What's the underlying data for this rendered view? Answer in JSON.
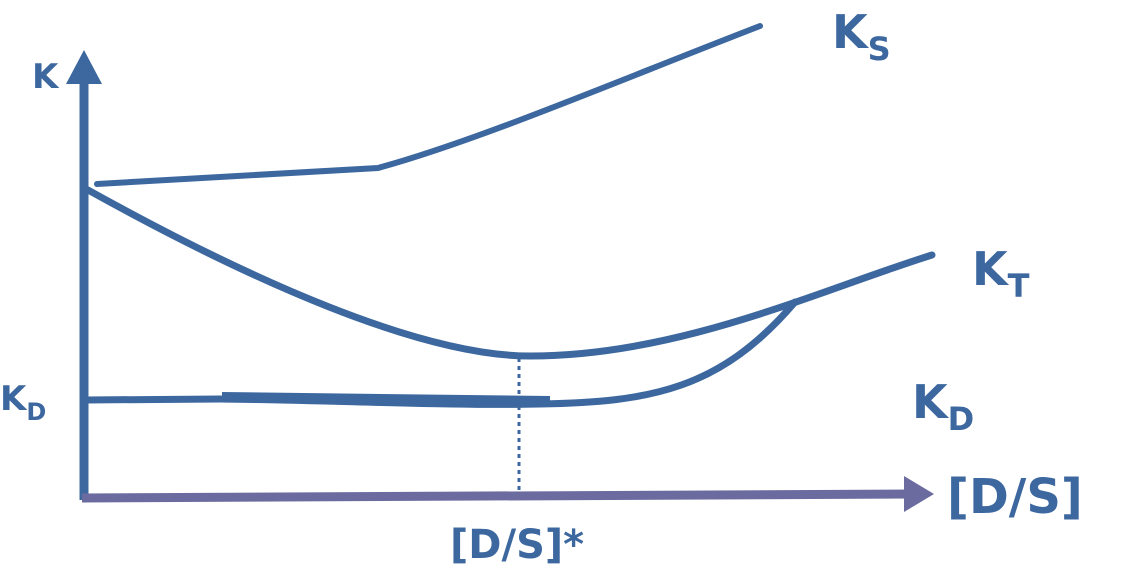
{
  "colors": {
    "curve": "#3d689f",
    "x_axis": "#6b6ba0",
    "label": "#3d689f"
  },
  "y_axis": {
    "label": "K",
    "tick_label": {
      "main": "K",
      "sub": "D"
    }
  },
  "x_axis": {
    "label": "[D/S]",
    "marker_label": "[D/S]*"
  },
  "curves": {
    "ks": {
      "main": "K",
      "sub": "S"
    },
    "kt": {
      "main": "K",
      "sub": "T"
    },
    "kd": {
      "main": "K",
      "sub": "D"
    }
  }
}
